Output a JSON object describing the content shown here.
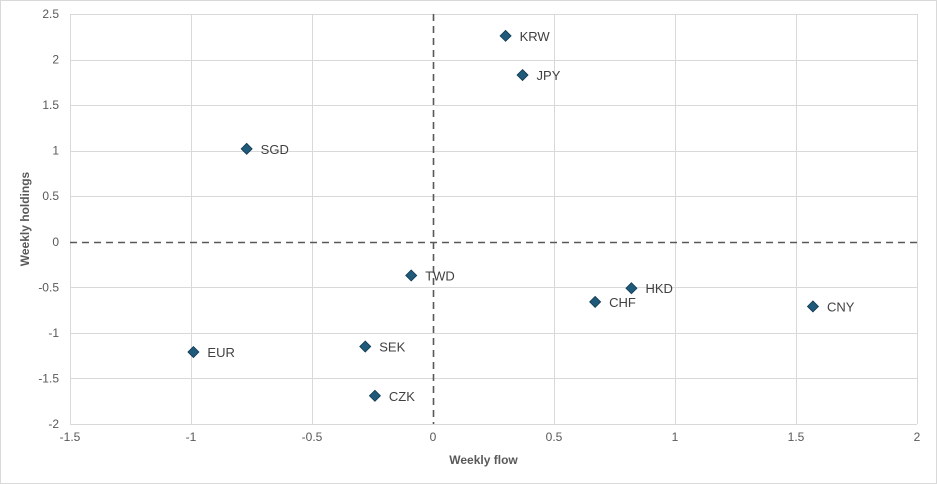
{
  "chart_data": {
    "type": "scatter",
    "title": "",
    "xlabel": "Weekly flow",
    "ylabel": "Weekly holdings",
    "xlim": [
      -1.5,
      2
    ],
    "ylim": [
      -2,
      2.5
    ],
    "xticks": [
      -1.5,
      -1,
      -0.5,
      0,
      0.5,
      1,
      1.5,
      2
    ],
    "yticks": [
      -2,
      -1.5,
      -1,
      -0.5,
      0,
      0.5,
      1,
      1.5,
      2,
      2.5
    ],
    "xtick_labels": [
      "-1.5",
      "-1",
      "-0.5",
      "0",
      "0.5",
      "1",
      "1.5",
      "2"
    ],
    "ytick_labels": [
      "-2",
      "-1.5",
      "-1",
      "-0.5",
      "0",
      "0.5",
      "1",
      "1.5",
      "2",
      "2.5"
    ],
    "grid": true,
    "zero_lines": "dashed",
    "marker": "diamond",
    "colors": {
      "marker": "#1f5a7a",
      "marker_edge": "#0f3950",
      "grid": "#d9d9d9",
      "zero_line": "#595959"
    },
    "points": [
      {
        "label": "KRW",
        "x": 0.3,
        "y": 2.26
      },
      {
        "label": "JPY",
        "x": 0.37,
        "y": 1.83
      },
      {
        "label": "SGD",
        "x": -0.77,
        "y": 1.02
      },
      {
        "label": "TWD",
        "x": -0.09,
        "y": -0.37
      },
      {
        "label": "HKD",
        "x": 0.82,
        "y": -0.51
      },
      {
        "label": "CHF",
        "x": 0.67,
        "y": -0.66
      },
      {
        "label": "CNY",
        "x": 1.57,
        "y": -0.71
      },
      {
        "label": "EUR",
        "x": -0.99,
        "y": -1.21
      },
      {
        "label": "SEK",
        "x": -0.28,
        "y": -1.15
      },
      {
        "label": "CZK",
        "x": -0.24,
        "y": -1.69
      }
    ]
  }
}
